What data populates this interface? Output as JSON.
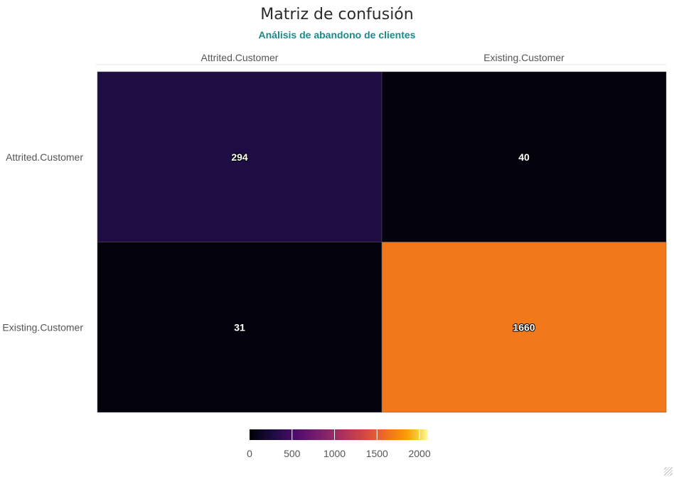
{
  "chart_data": {
    "type": "heatmap",
    "title": "Matriz de confusión",
    "subtitle": "Análisis de abandono de clientes",
    "columns": [
      "Attrited.Customer",
      "Existing.Customer"
    ],
    "rows": [
      "Attrited.Customer",
      "Existing.Customer"
    ],
    "values": [
      [
        294,
        40
      ],
      [
        31,
        1660
      ]
    ],
    "colorscale": "inferno",
    "color_range": [
      0,
      2100
    ],
    "legend": {
      "placement": "bottom",
      "ticks": [
        0,
        500,
        1000,
        1500,
        2000
      ],
      "tick_labels": [
        "0",
        "500",
        "1000",
        "1500",
        "2000"
      ]
    },
    "grid": false
  }
}
